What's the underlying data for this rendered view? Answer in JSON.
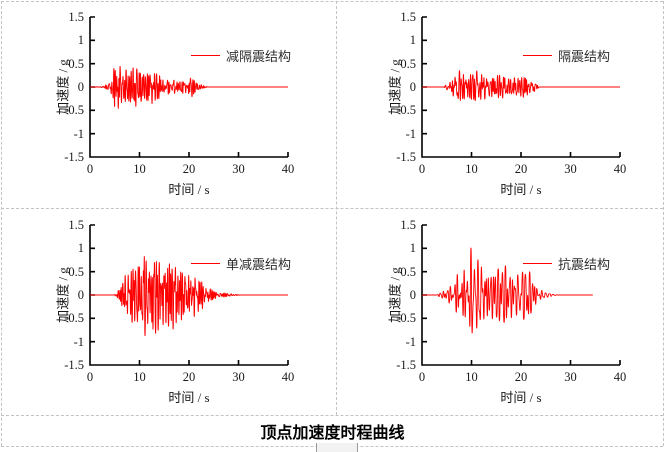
{
  "page": {
    "background": "#ffffff",
    "grid_border_color": "#c3c3c3"
  },
  "caption": "顶点加速度时程曲线",
  "chart_data": [
    {
      "type": "line",
      "legend": "减隔震结构",
      "xlabel": "时间 / s",
      "ylabel": "加速度 / g",
      "xlim": [
        0,
        40
      ],
      "ylim": [
        -1.5,
        1.5
      ],
      "x_ticks": [
        "0",
        "10",
        "20",
        "30",
        "40"
      ],
      "y_ticks": [
        "1.5",
        "1",
        "0.5",
        "0",
        "-0.5",
        "-1",
        "-1.5"
      ],
      "line_color": "#fe0000",
      "axis_color": "#000000",
      "peak_g": 0.58,
      "t_end": 40,
      "seed": 7,
      "freq_band_hz": [
        1.0,
        4.5
      ],
      "n_components": 10,
      "envelope_t_g": [
        [
          0,
          0
        ],
        [
          3,
          0.02
        ],
        [
          3.3,
          0.08
        ],
        [
          4,
          0.12
        ],
        [
          4.6,
          0.3
        ],
        [
          5,
          0.5
        ],
        [
          5.6,
          0.58
        ],
        [
          6.4,
          0.45
        ],
        [
          7,
          0.32
        ],
        [
          7.6,
          0.42
        ],
        [
          8.4,
          0.38
        ],
        [
          9,
          0.55
        ],
        [
          9.6,
          0.45
        ],
        [
          10.4,
          0.32
        ],
        [
          11,
          0.28
        ],
        [
          12,
          0.42
        ],
        [
          12.6,
          0.45
        ],
        [
          13.4,
          0.3
        ],
        [
          14,
          0.28
        ],
        [
          15,
          0.2
        ],
        [
          16,
          0.16
        ],
        [
          17,
          0.16
        ],
        [
          18,
          0.13
        ],
        [
          19,
          0.16
        ],
        [
          20,
          0.2
        ],
        [
          20.6,
          0.22
        ],
        [
          21.4,
          0.12
        ],
        [
          22,
          0.08
        ],
        [
          23,
          0.03
        ],
        [
          23.6,
          0.01
        ],
        [
          24,
          0
        ],
        [
          40,
          0
        ]
      ]
    },
    {
      "type": "line",
      "legend": "隔震结构",
      "xlabel": "时间 / s",
      "ylabel": "加速度 / g",
      "xlim": [
        0,
        40
      ],
      "ylim": [
        -1.5,
        1.5
      ],
      "x_ticks": [
        "0",
        "10",
        "20",
        "30",
        "40"
      ],
      "y_ticks": [
        "1.5",
        "1",
        "0.5",
        "0",
        "-0.5",
        "-1",
        "-1.5"
      ],
      "line_color": "#fe0000",
      "axis_color": "#000000",
      "peak_g": 0.45,
      "t_end": 40,
      "seed": 13,
      "freq_band_hz": [
        0.9,
        3.8
      ],
      "n_components": 9,
      "envelope_t_g": [
        [
          0,
          0
        ],
        [
          4.4,
          0
        ],
        [
          5,
          0.07
        ],
        [
          5.6,
          0.12
        ],
        [
          6.4,
          0.22
        ],
        [
          7,
          0.3
        ],
        [
          7.4,
          0.4
        ],
        [
          8,
          0.32
        ],
        [
          8.6,
          0.28
        ],
        [
          9.4,
          0.35
        ],
        [
          10,
          0.3
        ],
        [
          10.6,
          0.28
        ],
        [
          11,
          0.45
        ],
        [
          11.6,
          0.35
        ],
        [
          12.4,
          0.28
        ],
        [
          13,
          0.24
        ],
        [
          14,
          0.3
        ],
        [
          15,
          0.26
        ],
        [
          15.6,
          0.33
        ],
        [
          16.4,
          0.25
        ],
        [
          17,
          0.2
        ],
        [
          18,
          0.18
        ],
        [
          19,
          0.22
        ],
        [
          20,
          0.26
        ],
        [
          20.6,
          0.3
        ],
        [
          21.4,
          0.28
        ],
        [
          22,
          0.16
        ],
        [
          23,
          0.08
        ],
        [
          23.6,
          0.02
        ],
        [
          24,
          0
        ],
        [
          40,
          0
        ]
      ]
    },
    {
      "type": "line",
      "legend": "单减震结构",
      "xlabel": "时间 / s",
      "ylabel": "加速度 / g",
      "xlim": [
        0,
        40
      ],
      "ylim": [
        -1.5,
        1.5
      ],
      "x_ticks": [
        "0",
        "10",
        "20",
        "30",
        "40"
      ],
      "y_ticks": [
        "1.5",
        "1",
        "0.5",
        "0",
        "-0.5",
        "-1",
        "-1.5"
      ],
      "line_color": "#fe0000",
      "axis_color": "#000000",
      "peak_g": 1.05,
      "t_end": 40,
      "seed": 23,
      "freq_band_hz": [
        1.1,
        4.6
      ],
      "n_components": 10,
      "envelope_t_g": [
        [
          0,
          0
        ],
        [
          4.8,
          0
        ],
        [
          5.4,
          0.06
        ],
        [
          6,
          0.14
        ],
        [
          6.6,
          0.3
        ],
        [
          7,
          0.45
        ],
        [
          7.6,
          0.62
        ],
        [
          8,
          0.5
        ],
        [
          8.6,
          0.68
        ],
        [
          9,
          0.6
        ],
        [
          9.6,
          0.78
        ],
        [
          10.4,
          0.95
        ],
        [
          10.8,
          1.05
        ],
        [
          11.4,
          0.85
        ],
        [
          12,
          0.75
        ],
        [
          12.6,
          0.9
        ],
        [
          13.2,
          0.95
        ],
        [
          14,
          0.8
        ],
        [
          14.6,
          0.72
        ],
        [
          15.4,
          0.65
        ],
        [
          16,
          0.75
        ],
        [
          16.6,
          0.8
        ],
        [
          17.4,
          0.78
        ],
        [
          18,
          0.62
        ],
        [
          19,
          0.55
        ],
        [
          20,
          0.6
        ],
        [
          20.6,
          0.55
        ],
        [
          21.4,
          0.48
        ],
        [
          22,
          0.45
        ],
        [
          23,
          0.3
        ],
        [
          24,
          0.18
        ],
        [
          25,
          0.1
        ],
        [
          26,
          0.06
        ],
        [
          27,
          0.05
        ],
        [
          28,
          0.04
        ],
        [
          29,
          0.02
        ],
        [
          30,
          0.01
        ],
        [
          31,
          0
        ],
        [
          40,
          0
        ]
      ]
    },
    {
      "type": "line",
      "legend": "抗震结构",
      "xlabel": "时间 / s",
      "ylabel": "加速度 / g",
      "xlim": [
        0,
        40
      ],
      "ylim": [
        -1.5,
        1.5
      ],
      "x_ticks": [
        "0",
        "10",
        "20",
        "30",
        "40"
      ],
      "y_ticks": [
        "1.5",
        "1",
        "0.5",
        "0",
        "-0.5",
        "-1",
        "-1.5"
      ],
      "line_color": "#fe0000",
      "axis_color": "#000000",
      "peak_g": 1.18,
      "t_end": 34.5,
      "seed": 31,
      "freq_band_hz": [
        1.2,
        2.6
      ],
      "n_components": 7,
      "envelope_t_g": [
        [
          0,
          0
        ],
        [
          3,
          0.01
        ],
        [
          3.6,
          0.06
        ],
        [
          4.4,
          0.12
        ],
        [
          5,
          0.16
        ],
        [
          5.6,
          0.2
        ],
        [
          6.4,
          0.28
        ],
        [
          7,
          0.45
        ],
        [
          7.4,
          0.75
        ],
        [
          8,
          0.55
        ],
        [
          8.6,
          0.8
        ],
        [
          9.4,
          1.0
        ],
        [
          10,
          1.18
        ],
        [
          10.6,
          0.95
        ],
        [
          11.4,
          0.85
        ],
        [
          12,
          1.05
        ],
        [
          12.6,
          0.9
        ],
        [
          13.4,
          0.75
        ],
        [
          14,
          0.62
        ],
        [
          15,
          0.55
        ],
        [
          16,
          0.6
        ],
        [
          17,
          0.65
        ],
        [
          17.6,
          0.68
        ],
        [
          18.4,
          0.6
        ],
        [
          19,
          0.52
        ],
        [
          20,
          0.55
        ],
        [
          21,
          0.5
        ],
        [
          21.6,
          0.55
        ],
        [
          22,
          0.42
        ],
        [
          22.6,
          0.3
        ],
        [
          23,
          0.22
        ],
        [
          24,
          0.12
        ],
        [
          25,
          0.06
        ],
        [
          26,
          0.03
        ],
        [
          27,
          0.01
        ],
        [
          28,
          0
        ],
        [
          34.5,
          0
        ]
      ]
    }
  ]
}
